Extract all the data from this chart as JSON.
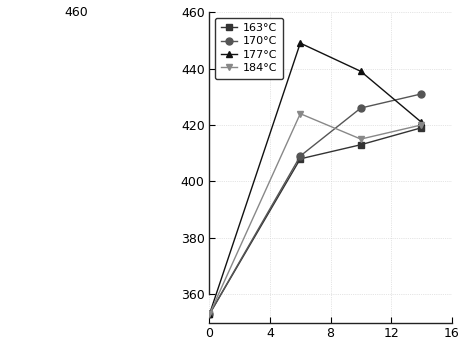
{
  "series": [
    {
      "label": "163°C",
      "x": [
        0,
        6,
        10,
        14
      ],
      "y": [
        353,
        408,
        413,
        419
      ],
      "color": "#333333",
      "marker": "s",
      "linestyle": "-"
    },
    {
      "label": "170°C",
      "x": [
        0,
        6,
        10,
        14
      ],
      "y": [
        353,
        409,
        426,
        431
      ],
      "color": "#555555",
      "marker": "o",
      "linestyle": "-"
    },
    {
      "label": "177°C",
      "x": [
        0,
        6,
        10,
        14
      ],
      "y": [
        353,
        449,
        439,
        421
      ],
      "color": "#111111",
      "marker": "^",
      "linestyle": "-"
    },
    {
      "label": "184°C",
      "x": [
        0,
        6,
        10,
        14
      ],
      "y": [
        353,
        424,
        415,
        420
      ],
      "color": "#888888",
      "marker": "v",
      "linestyle": "-"
    }
  ],
  "xlim": [
    0,
    16
  ],
  "ylim": [
    350,
    460
  ],
  "xticks": [
    0,
    4,
    8,
    12,
    16
  ],
  "yticks": [
    360,
    380,
    400,
    420,
    440,
    460
  ],
  "ytick_top": 460,
  "background_color": "#ffffff",
  "legend_loc": "upper left",
  "markersize": 5,
  "linewidth": 1.0,
  "grid_color": "#cccccc",
  "grid_style": ":",
  "grid_linewidth": 0.5
}
